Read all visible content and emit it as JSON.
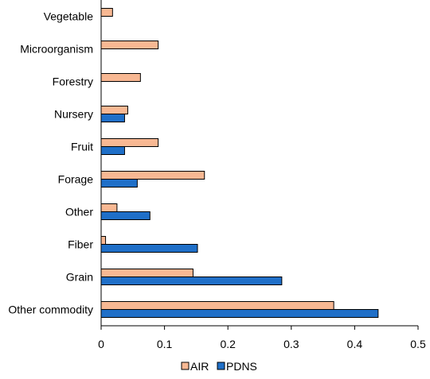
{
  "chart_data": {
    "type": "bar",
    "orientation": "horizontal",
    "categories": [
      "Vegetable",
      "Microorganism",
      "Forestry",
      "Nursery",
      "Fruit",
      "Forage",
      "Other",
      "Fiber",
      "Grain",
      "Other commodity"
    ],
    "series": [
      {
        "name": "AIR",
        "color": "#F8B893",
        "values": [
          0.018,
          0.09,
          0.062,
          0.042,
          0.09,
          0.163,
          0.025,
          0.007,
          0.145,
          0.367
        ]
      },
      {
        "name": "PDNS",
        "color": "#1F6FC8",
        "values": [
          null,
          null,
          null,
          0.037,
          0.037,
          0.057,
          0.077,
          0.152,
          0.285,
          0.437
        ]
      }
    ],
    "xlim": [
      0,
      0.5
    ],
    "xticks": [
      "0",
      "0.1",
      "0.2",
      "0.3",
      "0.4",
      "0.5"
    ],
    "xtick_values": [
      0,
      0.1,
      0.2,
      0.3,
      0.4,
      0.5
    ],
    "title": "",
    "xlabel": "",
    "ylabel": "",
    "grid": false,
    "legend_position": "bottom"
  }
}
